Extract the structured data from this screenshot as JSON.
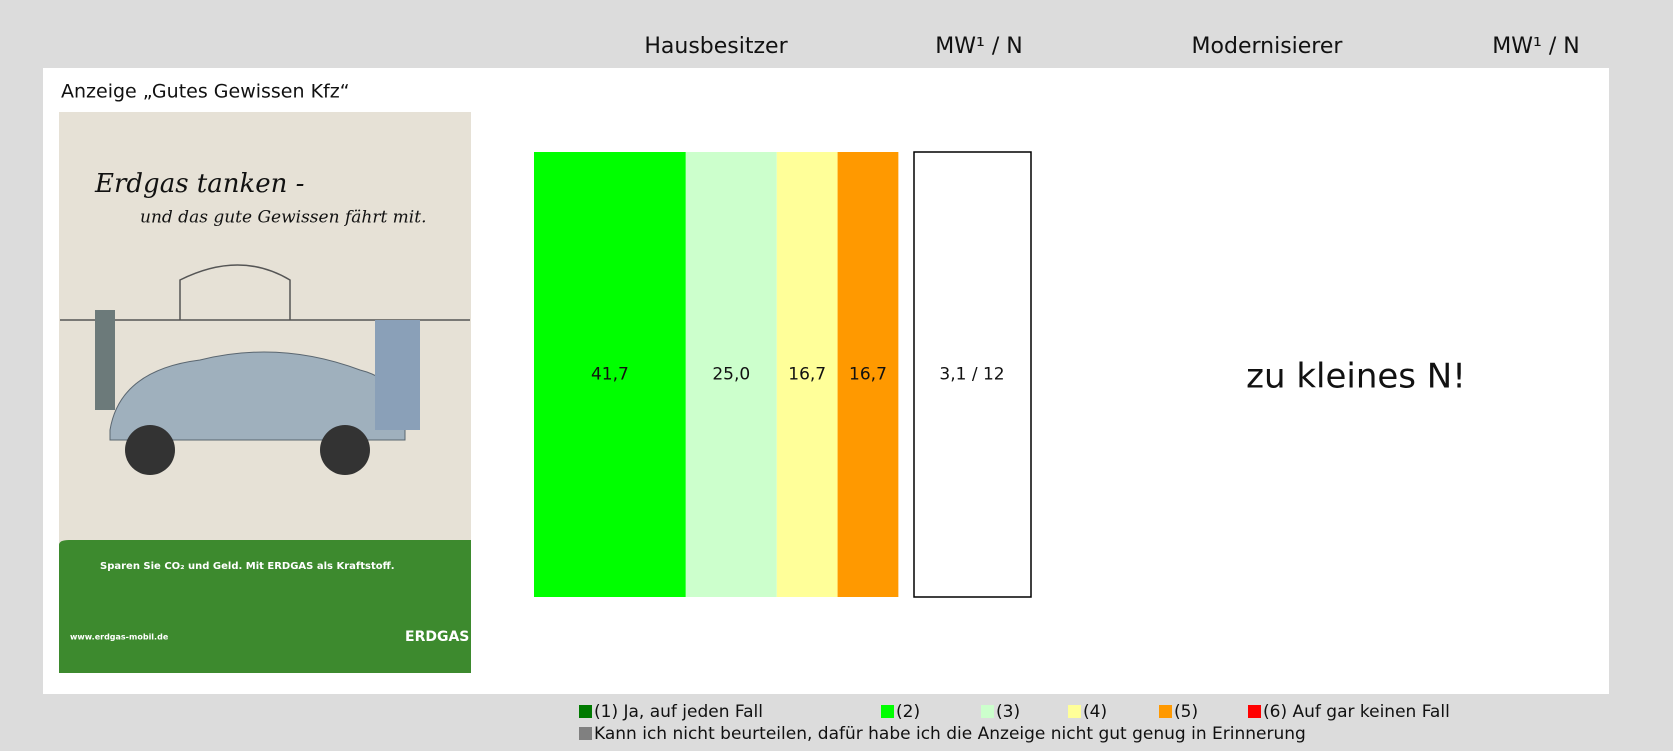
{
  "chart_data": {
    "type": "bar",
    "orientation": "horizontal",
    "stacked": true,
    "title": "Anzeige „Gutes Gewissen Kfz“",
    "categories": [
      "Hausbesitzer",
      "Modernisierer"
    ],
    "mw_headers": [
      "MW¹ / N",
      "MW¹ / N"
    ],
    "mw_labels": [
      "3,1 / 12",
      null
    ],
    "annotations": [
      null,
      "zu kleines N!"
    ],
    "xlim": [
      0,
      100
    ],
    "series": [
      {
        "name": "(1) Ja, auf jeden Fall",
        "color": "#007a00",
        "values": [
          null,
          null
        ],
        "value_labels": [
          null,
          null
        ]
      },
      {
        "name": "(2)",
        "color": "#00ff00",
        "values": [
          41.7,
          null
        ],
        "value_labels": [
          "41,7",
          null
        ]
      },
      {
        "name": "(3)",
        "color": "#ccffcc",
        "values": [
          25.0,
          null
        ],
        "value_labels": [
          "25,0",
          null
        ]
      },
      {
        "name": "(4)",
        "color": "#ffff99",
        "values": [
          16.7,
          null
        ],
        "value_labels": [
          "16,7",
          null
        ]
      },
      {
        "name": "(5)",
        "color": "#ff9900",
        "values": [
          16.7,
          null
        ],
        "value_labels": [
          "16,7",
          null
        ]
      },
      {
        "name": "(6) Auf gar keinen Fall",
        "color": "#ff0000",
        "values": [
          null,
          null
        ],
        "value_labels": [
          null,
          null
        ]
      },
      {
        "name": "Kann ich nicht beurteilen, dafür habe ich die Anzeige nicht gut genug in Erinnerung",
        "color": "#808080",
        "values": [
          null,
          null
        ],
        "value_labels": [
          null,
          null
        ]
      }
    ]
  },
  "ad": {
    "headline": "Erdgas tanken -",
    "subline": "und das gute Gewissen fährt mit.",
    "claim": "Sparen Sie CO₂ und Geld. Mit ERDGAS als Kraftstoff.",
    "url": "www.erdgas-mobil.de",
    "brand": "ERDGAS"
  }
}
